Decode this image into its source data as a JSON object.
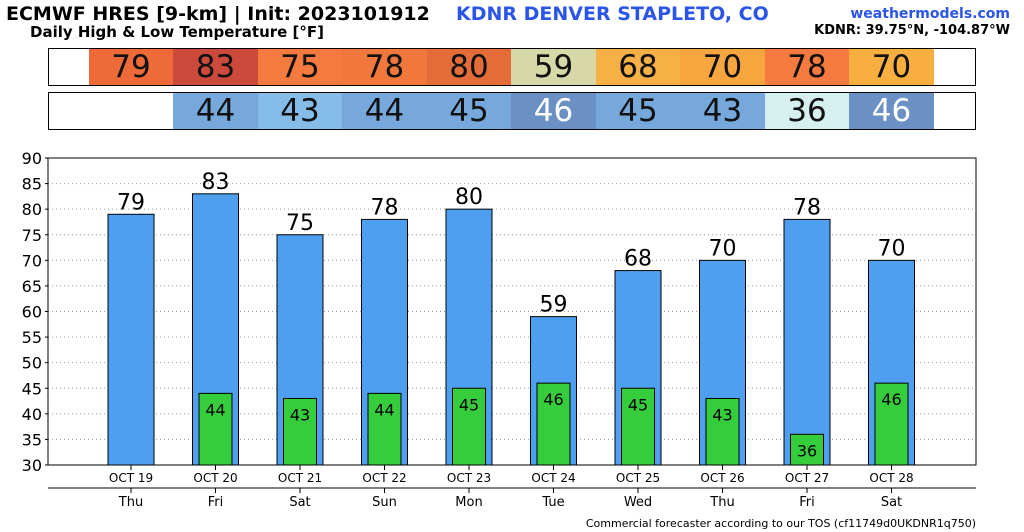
{
  "header": {
    "title": "ECMWF HRES [9-km] | Init: 2023101912",
    "subtitle": "Daily High & Low Temperature [°F]",
    "station": "KDNR DENVER STAPLETO, CO",
    "site": "weathermodels.com",
    "coords": "KDNR: 39.75°N, -104.87°W"
  },
  "footer": "Commercial forecaster according to our TOS (cf11749d0UKDNR1q750)",
  "colors": {
    "high_bar": "#4f9ff0",
    "low_bar": "#36cd3c",
    "high_strip": [
      "#ee6a38",
      "#cc4a3c",
      "#f47a40",
      "#f0783c",
      "#e46c38",
      "#d6d8a8",
      "#f6b046",
      "#f7a53e",
      "#f47a40",
      "#f9ae40"
    ],
    "low_strip": [
      "#ffffff",
      "#76a8dc",
      "#86bce8",
      "#76a8dc",
      "#76a8dc",
      "#6a90c4",
      "#76a8dc",
      "#76a8dc",
      "#d6f0f0",
      "#6a90c4"
    ]
  },
  "chart_data": {
    "type": "bar",
    "categories": [
      "OCT 19",
      "OCT 20",
      "OCT 21",
      "OCT 22",
      "OCT 23",
      "OCT 24",
      "OCT 25",
      "OCT 26",
      "OCT 27",
      "OCT 28"
    ],
    "weekdays": [
      "Thu",
      "Fri",
      "Sat",
      "Sun",
      "Mon",
      "Tue",
      "Wed",
      "Thu",
      "Fri",
      "Sat"
    ],
    "series": [
      {
        "values": [
          79,
          83,
          75,
          78,
          80,
          59,
          68,
          70,
          78,
          70
        ]
      },
      {
        "values": [
          null,
          44,
          43,
          44,
          45,
          46,
          45,
          43,
          36,
          46
        ]
      }
    ],
    "ylim": [
      30,
      90
    ],
    "yticks": [
      30,
      35,
      40,
      45,
      50,
      55,
      60,
      65,
      70,
      75,
      80,
      85,
      90
    ],
    "grid": true
  }
}
